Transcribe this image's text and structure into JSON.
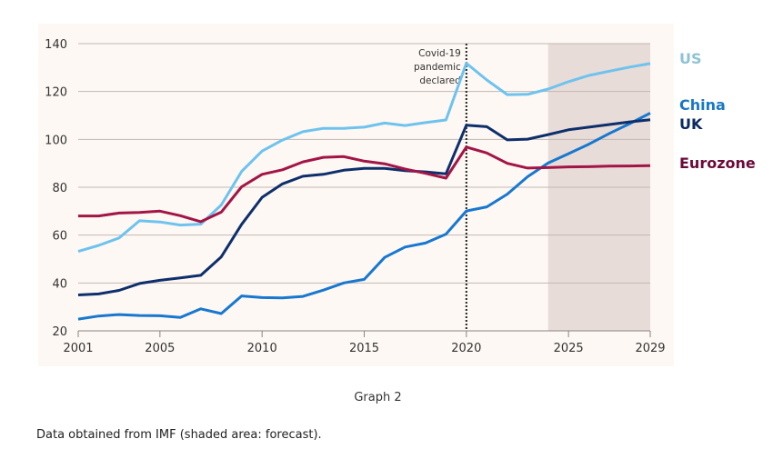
{
  "caption": "Graph 2",
  "source_note": "Data obtained from IMF (shaded area: forecast).",
  "chart_data": {
    "type": "line",
    "title": "",
    "xlabel": "",
    "ylabel": "",
    "xlim": [
      2001,
      2029
    ],
    "ylim": [
      20,
      140
    ],
    "yticks": [
      20,
      40,
      60,
      80,
      100,
      120,
      140
    ],
    "xticks": [
      2001,
      2005,
      2010,
      2015,
      2020,
      2025,
      2029
    ],
    "grid": true,
    "legend_position": "right",
    "forecast_shading": {
      "from": 2024,
      "to": 2029,
      "color": "#e8dcd8",
      "label": "forecast"
    },
    "annotation": {
      "x": 2020,
      "lines": [
        "Covid-19",
        "pandemic",
        "declared"
      ],
      "style": "dotted-vertical-line"
    },
    "x": [
      2001,
      2002,
      2003,
      2004,
      2005,
      2006,
      2007,
      2008,
      2009,
      2010,
      2011,
      2012,
      2013,
      2014,
      2015,
      2016,
      2017,
      2018,
      2019,
      2020,
      2021,
      2022,
      2023,
      2024,
      2025,
      2026,
      2027,
      2028,
      2029
    ],
    "series": [
      {
        "name": "US",
        "color": "#6ec3ee",
        "label_color": "#8fc3d3",
        "values": [
          53.2,
          55.7,
          58.8,
          66.0,
          65.5,
          64.2,
          64.6,
          72.6,
          86.6,
          95.1,
          99.7,
          103.2,
          104.6,
          104.6,
          105.1,
          106.8,
          105.8,
          107.0,
          108.1,
          131.8,
          124.8,
          118.7,
          118.8,
          121.0,
          124.1,
          126.7,
          128.5,
          130.2,
          131.7
        ]
      },
      {
        "name": "China",
        "color": "#1878cf",
        "label_color": "#1878c5",
        "values": [
          24.9,
          26.2,
          26.8,
          26.4,
          26.3,
          25.6,
          29.2,
          27.2,
          34.6,
          33.9,
          33.8,
          34.4,
          37.0,
          40.0,
          41.5,
          50.7,
          55.0,
          56.7,
          60.4,
          70.1,
          71.8,
          77.1,
          84.4,
          90.1,
          94.0,
          98.0,
          102.5,
          106.6,
          111.0
        ]
      },
      {
        "name": "UK",
        "color": "#0e2f6b",
        "label_color": "#0b2a5e",
        "values": [
          35.0,
          35.4,
          36.9,
          39.8,
          41.1,
          42.1,
          43.2,
          50.9,
          64.5,
          75.8,
          81.4,
          84.6,
          85.4,
          87.1,
          87.9,
          87.9,
          86.9,
          86.4,
          85.6,
          105.9,
          105.3,
          99.8,
          100.1,
          102.0,
          104.0,
          105.1,
          106.2,
          107.3,
          108.2
        ]
      },
      {
        "name": "Eurozone",
        "color": "#a31546",
        "label_color": "#6b0a38",
        "values": [
          68.0,
          68.0,
          69.2,
          69.5,
          70.0,
          68.1,
          65.6,
          69.6,
          80.2,
          85.4,
          87.3,
          90.6,
          92.5,
          92.8,
          90.9,
          89.8,
          87.6,
          85.8,
          83.8,
          96.8,
          94.3,
          90.0,
          88.0,
          88.2,
          88.5,
          88.6,
          88.8,
          88.9,
          89.0
        ]
      }
    ]
  }
}
